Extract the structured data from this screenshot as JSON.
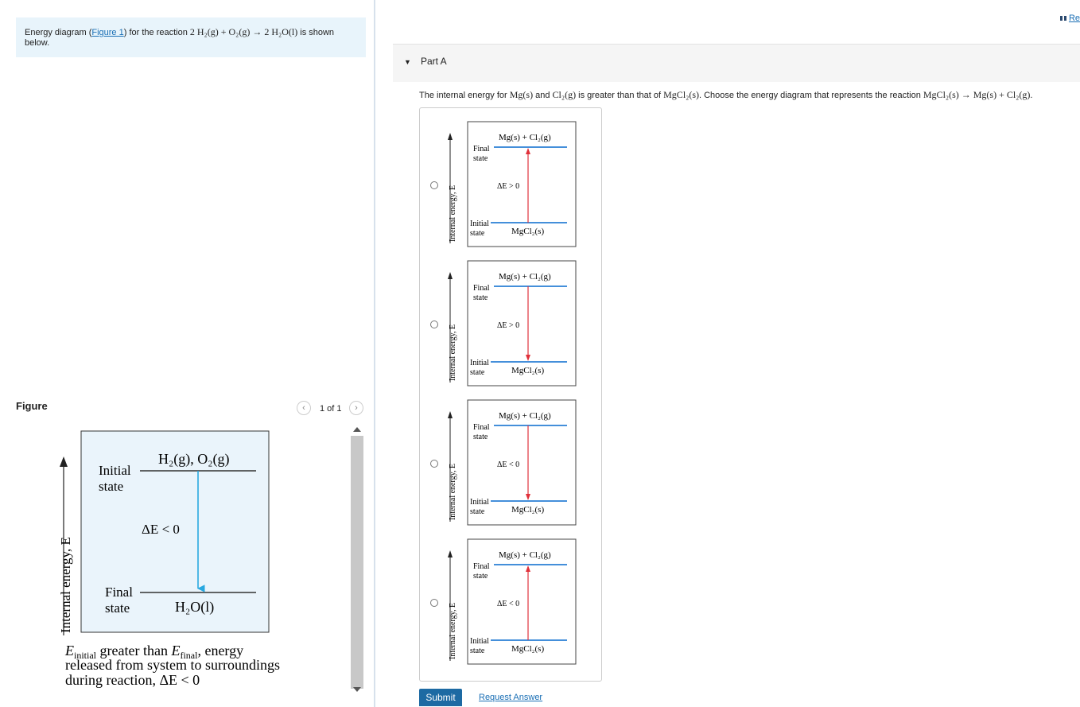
{
  "intro": {
    "prefix": "Energy diagram (",
    "figure_link": "Figure 1",
    "mid": ") for the reaction ",
    "reaction": "2 H₂(g) + O₂(g) → 2 H₂O(l)",
    "suffix": " is shown below."
  },
  "figure": {
    "title": "Figure",
    "count": "1 of 1",
    "prev_icon": "chevron-left-icon",
    "next_icon": "chevron-right-icon",
    "axis_label": "Internal energy, E",
    "top_label_1": "Initial",
    "top_label_2": "state",
    "top_species": "H₂(g), O₂(g)",
    "delta": "ΔE < 0",
    "bottom_label_1": "Final",
    "bottom_label_2": "state",
    "bottom_species": "H₂O(l)",
    "caption_line1_a": "E",
    "caption_line1_sub1": "initial",
    "caption_line1_b": " greater than ",
    "caption_line1_c": "E",
    "caption_line1_sub2": "final",
    "caption_line1_d": ", energy",
    "caption_line2": "released from system to surroundings",
    "caption_line3": "during reaction, ΔE < 0",
    "colors": {
      "panel_bg": "#eaf4fb",
      "level_line": "#333333",
      "arrow": "#29a8e0"
    }
  },
  "header_link": "Re",
  "part": {
    "title": "Part A",
    "question_a": "The internal energy for ",
    "question_species1": "Mg(s)",
    "question_b": " and ",
    "question_species2": "Cl₂(g)",
    "question_c": " is greater than that of ",
    "question_species3": "MgCl₂(s)",
    "question_d": ". Choose the energy diagram that represents the reaction ",
    "question_reaction": "MgCl₂(s) → Mg(s) + Cl₂(g)",
    "question_e": ".",
    "options": [
      {
        "top_species": "Mg(s) + Cl₂(g)",
        "top_label_1": "Final",
        "top_label_2": "state",
        "delta": "ΔE > 0",
        "bottom_label_1": "Initial",
        "bottom_label_2": "state",
        "bottom_species": "MgCl₂(s)",
        "axis_label": "Internal energy, E",
        "arrow_direction": "up"
      },
      {
        "top_species": "Mg(s) + Cl₂(g)",
        "top_label_1": "Final",
        "top_label_2": "state",
        "delta": "ΔE > 0",
        "bottom_label_1": "Initial",
        "bottom_label_2": "state",
        "bottom_species": "MgCl₂(s)",
        "axis_label": "Internal energy, E",
        "arrow_direction": "down"
      },
      {
        "top_species": "Mg(s) + Cl₂(g)",
        "top_label_1": "Final",
        "top_label_2": "state",
        "delta": "ΔE < 0",
        "bottom_label_1": "Initial",
        "bottom_label_2": "state",
        "bottom_species": "MgCl₂(s)",
        "axis_label": "Internal energy, E",
        "arrow_direction": "down"
      },
      {
        "top_species": "Mg(s) + Cl₂(g)",
        "top_label_1": "Final",
        "top_label_2": "state",
        "delta": "ΔE < 0",
        "bottom_label_1": "Initial",
        "bottom_label_2": "state",
        "bottom_species": "MgCl₂(s)",
        "axis_label": "Internal energy, E",
        "arrow_direction": "up"
      }
    ],
    "submit_label": "Submit",
    "request_label": "Request Answer",
    "colors": {
      "level_line": "#2a7fd4",
      "arrow": "#e0303a"
    }
  }
}
